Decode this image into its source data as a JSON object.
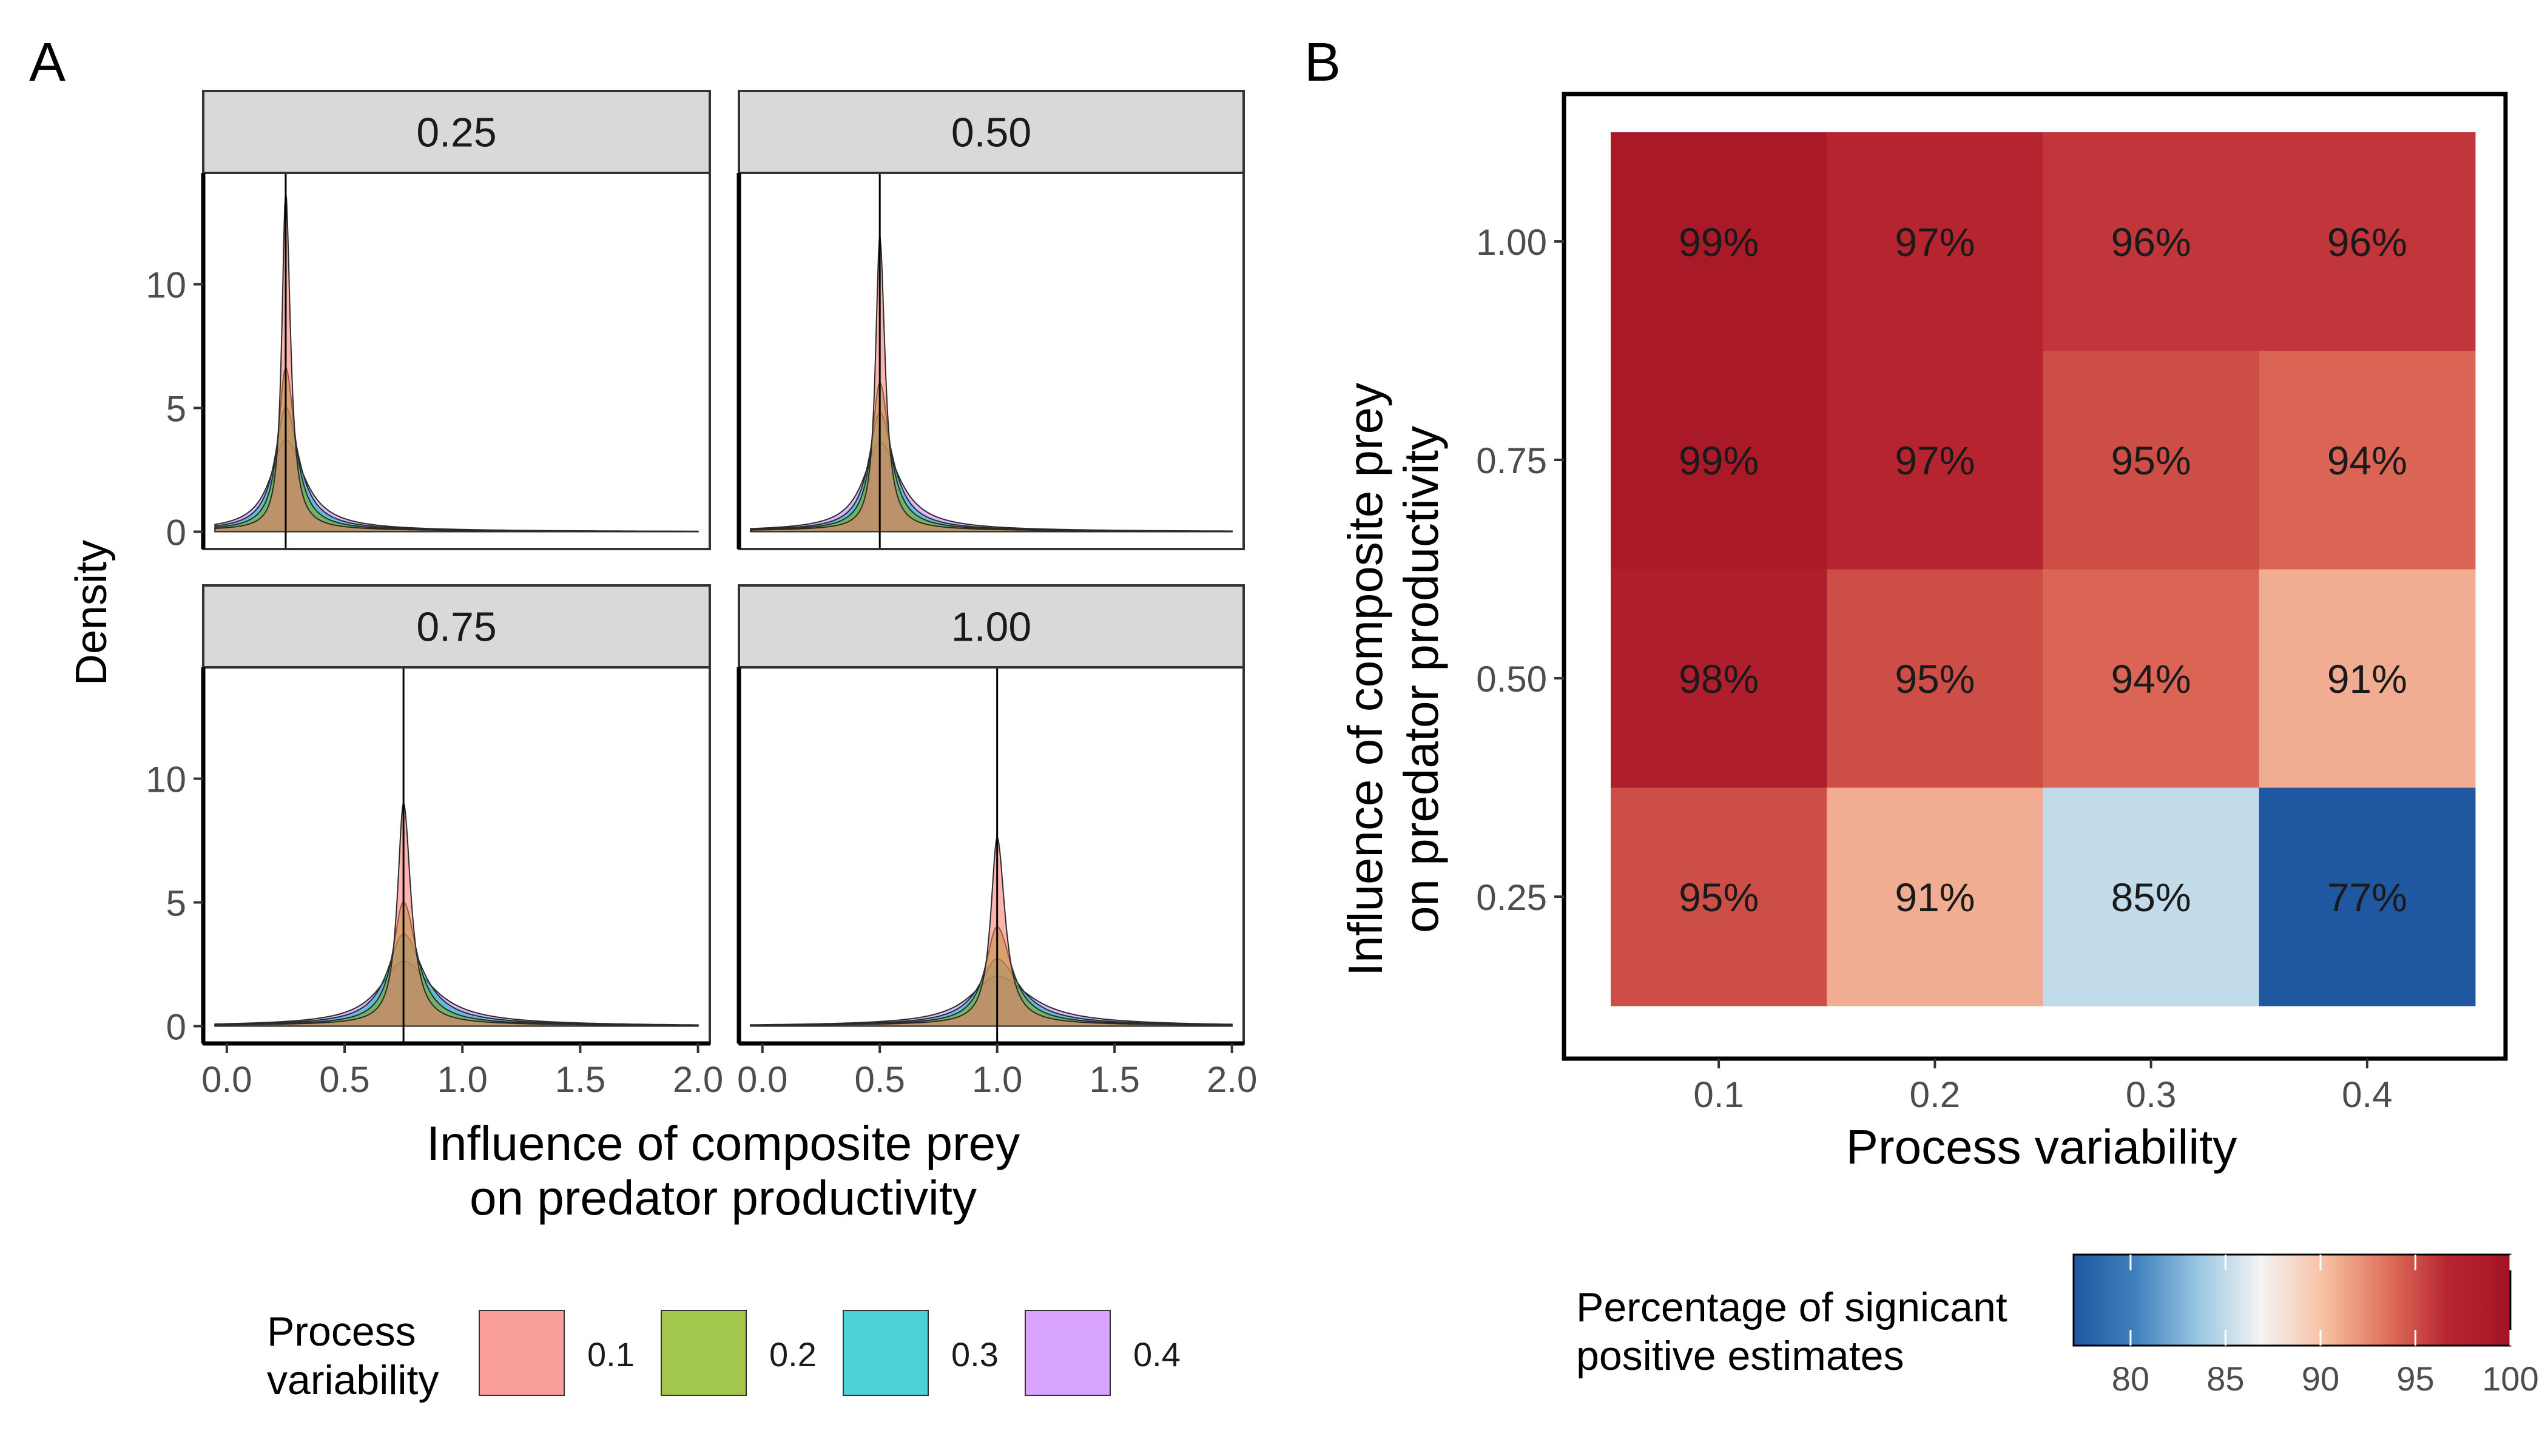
{
  "panel_a": {
    "tag": "A",
    "ylabel": "Density",
    "xlabel_line1": "Influence of composite prey",
    "xlabel_line2": "on predator productivity",
    "legend_title_line1": "Process",
    "legend_title_line2": "variability"
  },
  "panel_b": {
    "tag": "B",
    "xlabel": "Process variability",
    "ylabel_line1": "Influence of composite prey",
    "ylabel_line2": "on predator productivity",
    "legend_title_line1": "Percentage of signicant",
    "legend_title_line2": "positive estimates"
  },
  "chart_data": [
    {
      "type": "area",
      "subtype": "density",
      "facets": [
        "0.25",
        "0.50",
        "0.75",
        "1.00"
      ],
      "facet_true_values": [
        0.25,
        0.5,
        0.75,
        1.0
      ],
      "x_ticks": [
        "0.0",
        "0.5",
        "1.0",
        "1.5",
        "2.0"
      ],
      "x_tick_values": [
        0,
        0.5,
        1.0,
        1.5,
        2.0
      ],
      "xlim": [
        -0.1,
        2.05
      ],
      "y_ticks": [
        "0",
        "5",
        "10"
      ],
      "y_tick_values": [
        0,
        5,
        10
      ],
      "ylim": [
        -0.7,
        14.5
      ],
      "legend_position": "bottom",
      "legend_labels": [
        "0.1",
        "0.2",
        "0.3",
        "0.4"
      ],
      "series_colors": [
        "#F8766D",
        "#7CAE00",
        "#00BFC4",
        "#C77CFF"
      ],
      "peaks": {
        "0.25": [
          13.6,
          6.5,
          4.9,
          3.6
        ],
        "0.50": [
          11.8,
          5.9,
          4.7,
          3.5
        ],
        "0.75": [
          8.9,
          4.9,
          3.6,
          2.5
        ],
        "1.00": [
          7.5,
          3.9,
          2.6,
          1.9
        ]
      },
      "widths": {
        "0.25": [
          0.018,
          0.035,
          0.05,
          0.07
        ],
        "0.50": [
          0.02,
          0.038,
          0.052,
          0.075
        ],
        "0.75": [
          0.028,
          0.05,
          0.075,
          0.11
        ],
        "1.00": [
          0.03,
          0.055,
          0.085,
          0.125
        ]
      }
    },
    {
      "type": "heatmap",
      "x_categories": [
        "0.1",
        "0.2",
        "0.3",
        "0.4"
      ],
      "y_categories": [
        "0.25",
        "0.50",
        "0.75",
        "1.00"
      ],
      "values": [
        [
          95,
          91,
          85,
          77
        ],
        [
          98,
          95,
          94,
          91
        ],
        [
          99,
          97,
          95,
          94
        ],
        [
          99,
          97,
          96,
          96
        ]
      ],
      "labels": [
        [
          "95%",
          "91%",
          "85%",
          "77%"
        ],
        [
          "98%",
          "95%",
          "94%",
          "91%"
        ],
        [
          "99%",
          "97%",
          "95%",
          "94%"
        ],
        [
          "99%",
          "97%",
          "96%",
          "96%"
        ]
      ],
      "colorbar_ticks": [
        "80",
        "85",
        "90",
        "95",
        "100"
      ],
      "colorbar_values": [
        80,
        85,
        90,
        95,
        100
      ],
      "colorbar_range": [
        77,
        100
      ],
      "colorbar_midpoint": 89,
      "colorbar_colors": [
        "#1F57A0",
        "#3F81BC",
        "#9AC7E2",
        "#F4F4F4",
        "#F7C1A4",
        "#E1735C",
        "#B82531",
        "#A21424"
      ],
      "legend_position": "bottom"
    }
  ]
}
